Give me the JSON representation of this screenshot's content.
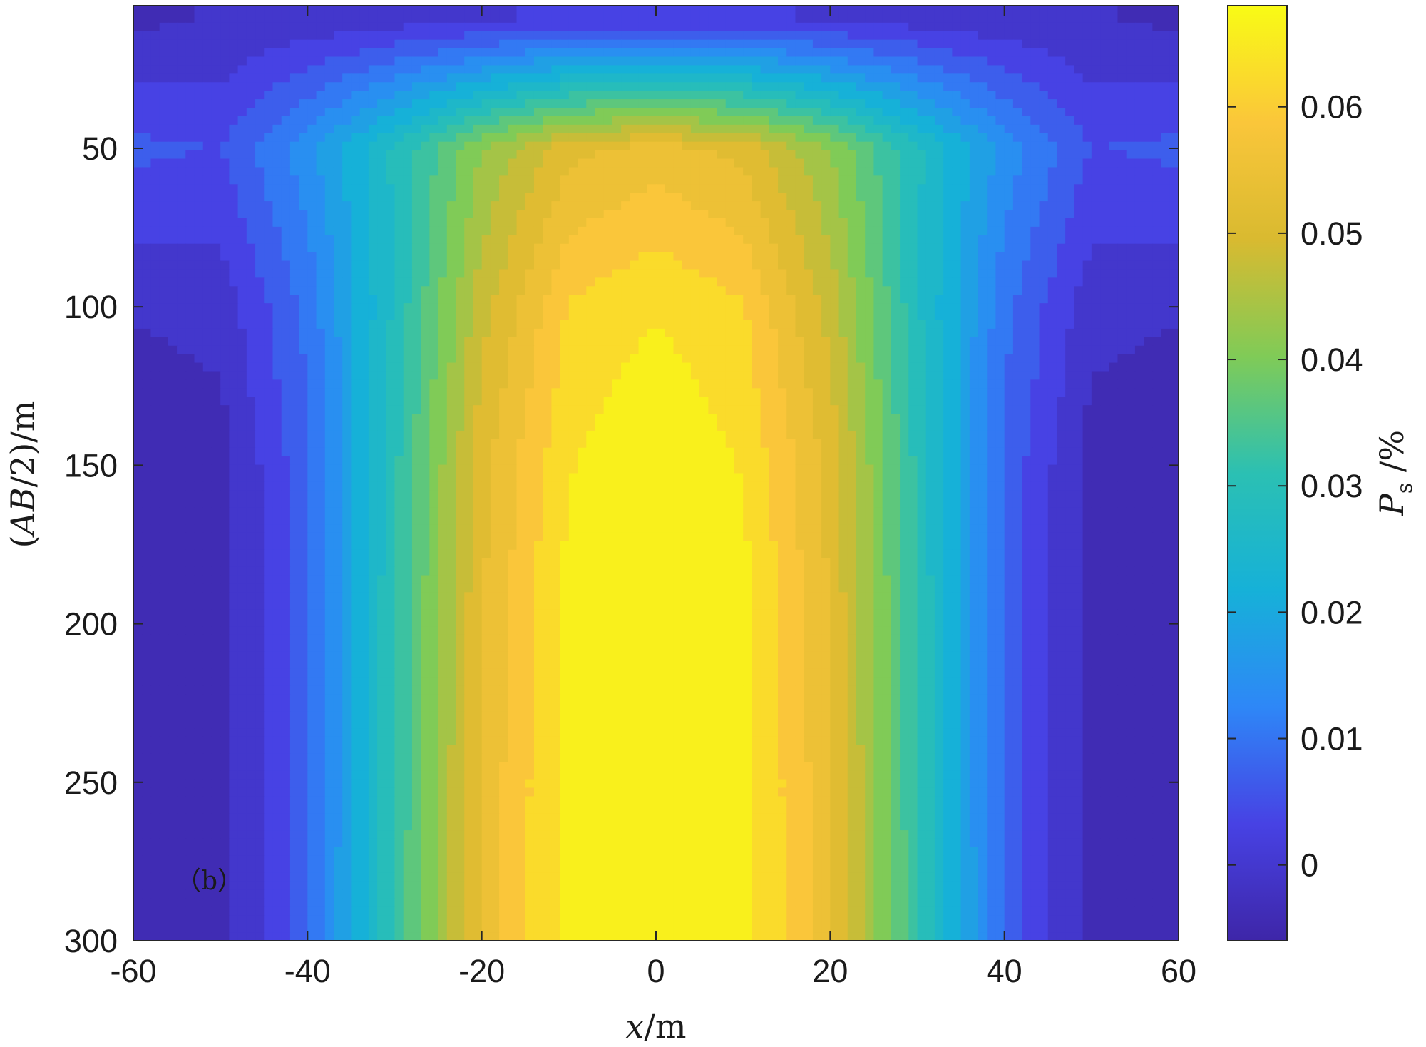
{
  "chart_data": {
    "type": "heatmap",
    "subtype": "filled-contour",
    "colormap": "parula",
    "panel_label": "（b）",
    "xlabel": "x/m",
    "ylabel": "(AB/2)/m",
    "colorbar_label": "P_s /%",
    "colorbar_label_main": "P",
    "colorbar_label_sub": "s",
    "colorbar_label_unit": " /%",
    "xlim": [
      -60,
      60
    ],
    "ylim": [
      300,
      5
    ],
    "y_reversed": true,
    "clim": [
      -0.006,
      0.068
    ],
    "contour_levels": 20,
    "grid": false,
    "x_ticks": [
      -60,
      -40,
      -20,
      0,
      20,
      40,
      60
    ],
    "x_tick_labels": [
      "-60",
      "-40",
      "-20",
      "0",
      "20",
      "40",
      "60"
    ],
    "y_ticks": [
      50,
      100,
      150,
      200,
      250,
      300
    ],
    "y_tick_labels": [
      "50",
      "100",
      "150",
      "200",
      "250",
      "300"
    ],
    "colorbar_ticks": [
      0,
      0.01,
      0.02,
      0.03,
      0.04,
      0.05,
      0.06
    ],
    "colorbar_tick_labels": [
      "0",
      "0.01",
      "0.02",
      "0.03",
      "0.04",
      "0.05",
      "0.06"
    ],
    "field_samples": {
      "x": [
        -60,
        -50,
        -40,
        -30,
        -20,
        -10,
        0,
        10,
        20,
        30,
        40,
        50,
        60
      ],
      "depth": [
        10,
        50,
        100,
        150,
        200,
        250,
        300
      ],
      "values": [
        [
          -0.003,
          -0.002,
          -0.001,
          0.0,
          0.001,
          0.002,
          0.002,
          0.002,
          0.001,
          0.0,
          -0.001,
          -0.002,
          -0.003
        ],
        [
          0.006,
          0.005,
          0.015,
          0.028,
          0.042,
          0.052,
          0.055,
          0.052,
          0.042,
          0.028,
          0.015,
          0.005,
          0.006
        ],
        [
          -0.002,
          -0.001,
          0.01,
          0.028,
          0.048,
          0.061,
          0.064,
          0.061,
          0.048,
          0.028,
          0.01,
          -0.001,
          -0.002
        ],
        [
          -0.005,
          -0.004,
          0.008,
          0.03,
          0.052,
          0.064,
          0.068,
          0.064,
          0.052,
          0.03,
          0.008,
          -0.004,
          -0.005
        ],
        [
          -0.005,
          -0.004,
          0.008,
          0.031,
          0.053,
          0.066,
          0.068,
          0.066,
          0.053,
          0.031,
          0.008,
          -0.004,
          -0.005
        ],
        [
          -0.005,
          -0.004,
          0.008,
          0.031,
          0.054,
          0.066,
          0.068,
          0.066,
          0.054,
          0.031,
          0.008,
          -0.004,
          -0.005
        ],
        [
          -0.005,
          -0.004,
          0.008,
          0.032,
          0.054,
          0.066,
          0.068,
          0.066,
          0.054,
          0.032,
          0.008,
          -0.004,
          -0.005
        ]
      ]
    }
  }
}
